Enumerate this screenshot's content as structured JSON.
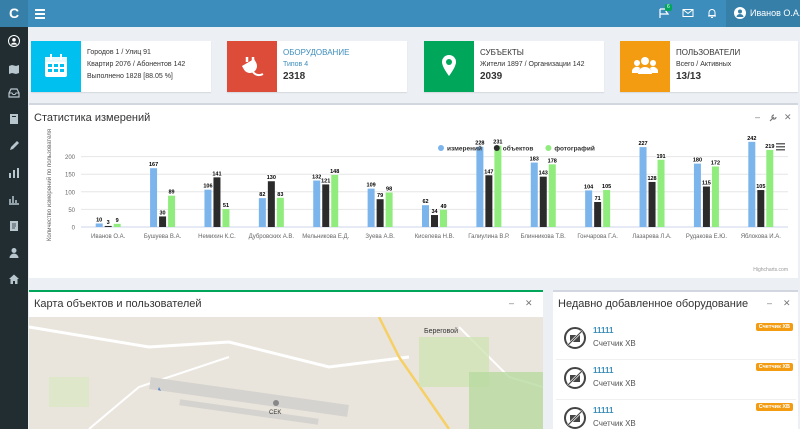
{
  "app": {
    "logo": "C"
  },
  "topbar": {
    "notification_count": "6",
    "user_name": "Иванов О.А."
  },
  "sidebar": {
    "items": [
      "user-icon",
      "map-icon",
      "inbox-icon",
      "book-icon",
      "pencil-icon",
      "bar-chart-icon",
      "stats-icon",
      "doc-icon",
      "person-icon",
      "home-icon"
    ]
  },
  "info_boxes": [
    {
      "color": "#00c0ef",
      "icon": "calendar-icon",
      "title": "",
      "line1": "Городов 1 / Улиц 91",
      "line2": "Квартир 2076 / Абонентов 142",
      "line3": "Выполнено 1828 [88.05 %]"
    },
    {
      "color": "#dd4b39",
      "icon": "plug-icon",
      "title": "ОБОРУДОВАНИЕ",
      "line1": "Типов 4",
      "number": "2318"
    },
    {
      "color": "#00a65a",
      "icon": "map-marker-icon",
      "title": "СУБЪЕКТЫ",
      "line1": "Жители 1897 / Организации 142",
      "number": "2039"
    },
    {
      "color": "#f39c12",
      "icon": "users-icon",
      "title": "ПОЛЬЗОВАТЕЛИ",
      "line1": "Всего / Активных",
      "number": "13/13"
    }
  ],
  "stats_panel": {
    "title": "Статистика измерений",
    "credit": "Highcharts.com"
  },
  "chart_data": {
    "type": "bar",
    "categories": [
      "Иванов О.А.",
      "Бушуева В.А.",
      "Немихин К.С.",
      "Дубровских А.В.",
      "Мельникова Е.Д.",
      "Зуева А.В.",
      "Киселева Н.В.",
      "Галиулина В.Р.",
      "Блинникова Т.В.",
      "Гончарова Г.А.",
      "Лазарева Л.А.",
      "Рудакова Е.Ю.",
      "Яблокова И.А."
    ],
    "series": [
      {
        "name": "измерений",
        "color": "#7cb5ec",
        "values": [
          10,
          167,
          106,
          82,
          132,
          109,
          62,
          228,
          183,
          104,
          227,
          180,
          242
        ]
      },
      {
        "name": "объектов",
        "color": "#2b2b2b",
        "values": [
          3,
          30,
          141,
          130,
          121,
          79,
          34,
          147,
          143,
          71,
          128,
          115,
          105
        ]
      },
      {
        "name": "фотографий",
        "color": "#90ed7d",
        "values": [
          9,
          89,
          51,
          83,
          148,
          98,
          49,
          231,
          178,
          105,
          191,
          172,
          219
        ]
      }
    ],
    "ylabel": "Количество измерений по пользователям",
    "yticks": [
      0,
      50,
      100,
      150,
      200
    ],
    "ylim": [
      0,
      250
    ],
    "legend": "top-right",
    "grid": true
  },
  "map_panel": {
    "title": "Карта объектов и пользователей",
    "label_town": "Береговой",
    "label_airport": "CEK"
  },
  "equipment_panel": {
    "title": "Недавно добавленное оборудование",
    "items": [
      {
        "id": "11111",
        "name": "Счетчик ХВ",
        "badge": "Счетчик ХВ"
      },
      {
        "id": "11111",
        "name": "Счетчик ХВ",
        "badge": "Счетчик ХВ"
      },
      {
        "id": "11111",
        "name": "Счетчик ХВ",
        "badge": "Счетчик ХВ"
      }
    ]
  }
}
